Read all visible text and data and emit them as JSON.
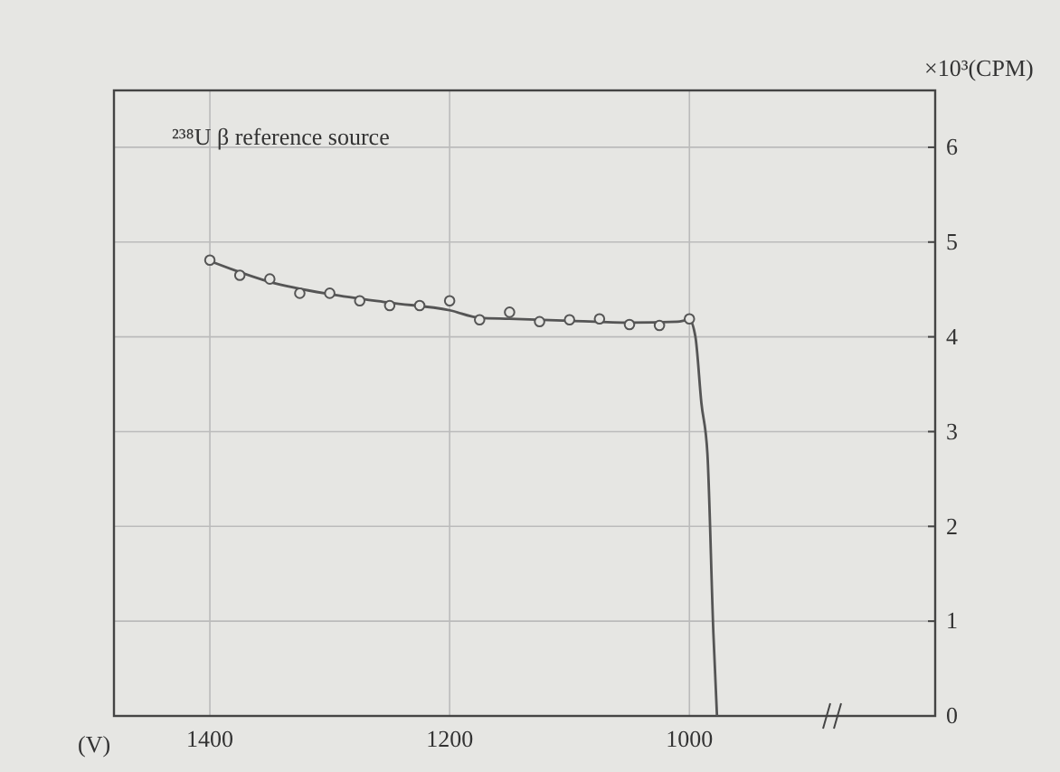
{
  "chart_data": {
    "type": "scatter",
    "xlabel": "(V)",
    "ylabel": "×10³(CPM)",
    "annotations": [
      "²³⁸U  β reference source"
    ],
    "xlim": [
      1480,
      795
    ],
    "xticks": [
      1400,
      1200,
      1000
    ],
    "ylim": [
      0,
      6.6
    ],
    "yticks": [
      0,
      1,
      2,
      3,
      4,
      5,
      6
    ],
    "grid": true,
    "marker": "circle",
    "series": [
      {
        "type": "scatter",
        "color": "#555555",
        "x": [
          1400,
          1375,
          1350,
          1325,
          1300,
          1275,
          1250,
          1225,
          1200,
          1175,
          1150,
          1125,
          1100,
          1075,
          1050,
          1025,
          1000
        ],
        "values": [
          4.81,
          4.65,
          4.61,
          4.46,
          4.46,
          4.38,
          4.33,
          4.33,
          4.38,
          4.18,
          4.26,
          4.16,
          4.18,
          4.19,
          4.13,
          4.12,
          4.19
        ]
      },
      {
        "type": "line",
        "color": "#555555",
        "marker": "none",
        "line_style": "solid",
        "x": [
          1400,
          1350,
          1300,
          1250,
          1200,
          1175,
          1150,
          1100,
          1050,
          1010,
          1000,
          995,
          990,
          985,
          980,
          977
        ],
        "values": [
          4.8,
          4.58,
          4.45,
          4.36,
          4.28,
          4.2,
          4.19,
          4.17,
          4.15,
          4.16,
          4.18,
          4.0,
          3.3,
          2.77,
          0.87,
          0
        ]
      }
    ]
  }
}
